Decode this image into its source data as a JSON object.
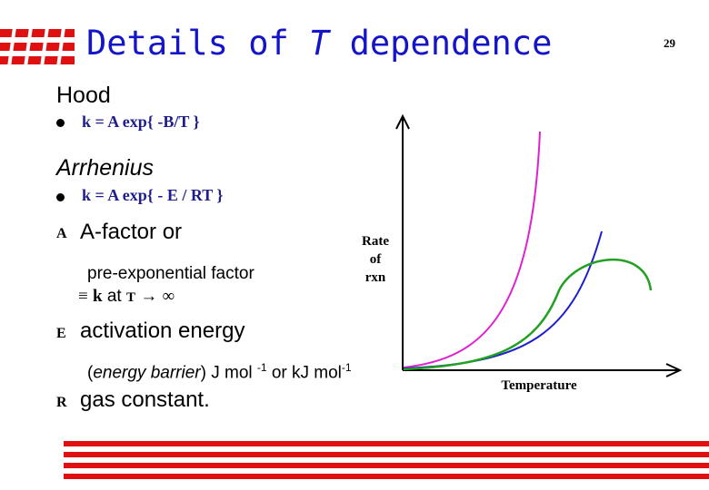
{
  "slide": {
    "title_pre": "Details of ",
    "title_var": "T",
    "title_post": " dependence",
    "slide_number": "29"
  },
  "hood": {
    "heading": "Hood",
    "formula": "k = A exp{ -B/T }"
  },
  "arrhenius": {
    "heading": "Arrhenius",
    "formula": "k = A exp{ - E / RT }"
  },
  "terms": {
    "a_symbol": "A",
    "a_desc": "A-factor or",
    "a_desc2": "pre-exponential factor",
    "a_equiv": "≡",
    "a_k": "k",
    "a_at": "at",
    "a_T": "T",
    "a_arrow": "→",
    "a_inf": "∞",
    "e_symbol": "E",
    "e_desc": "activation energy",
    "e_barrier_open": "(",
    "e_barrier_word": "energy barrier",
    "e_barrier_close": ") J mol ",
    "e_sup1": "-1",
    "e_or": " or kJ mol",
    "e_sup2": "-1",
    "r_symbol": "R",
    "r_desc": "gas constant."
  },
  "graph": {
    "ylabel_line1": "Rate",
    "ylabel_line2": "of",
    "ylabel_line3": "rxn",
    "xlabel": "Temperature",
    "colors": {
      "pink": "#e020d0",
      "blue": "#1e1ecc",
      "green": "#22a022",
      "accent_red": "#e01010",
      "title_blue": "#1414c8"
    }
  }
}
